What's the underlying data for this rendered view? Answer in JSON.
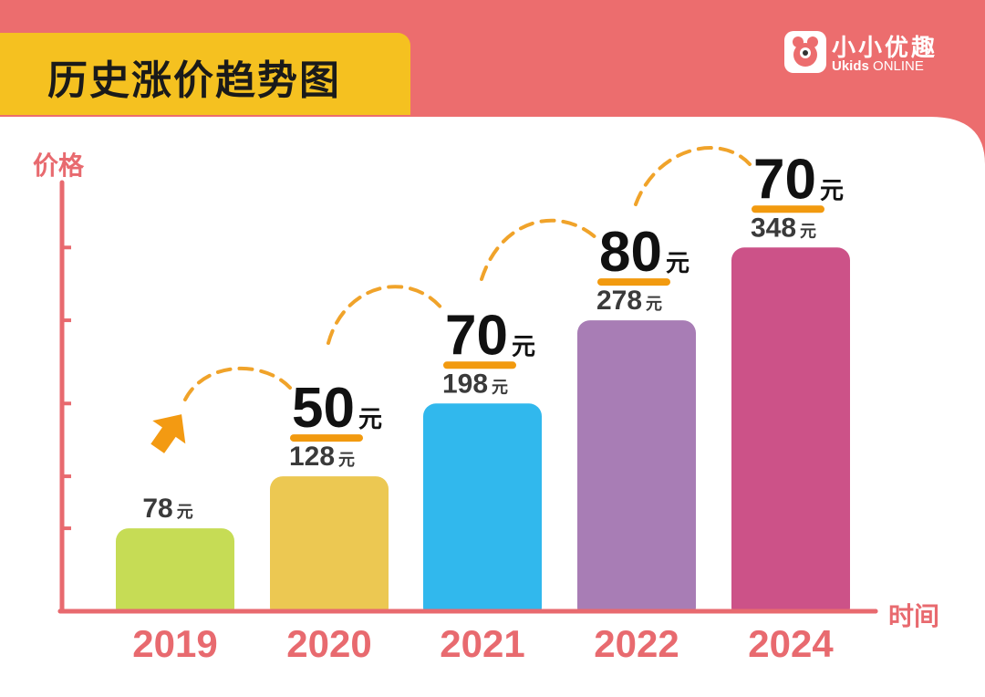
{
  "header": {
    "title": "历史涨价趋势图",
    "brand_name": "小小优趣",
    "brand_sub_bold": "Ukids",
    "brand_sub_rest": " ONLINE"
  },
  "colors": {
    "header_bg": "#ec6d6e",
    "title_bg": "#f5c120",
    "axis": "#e86a6f",
    "dash": "#f0a32a",
    "underline": "#f29a0f"
  },
  "chart_data": {
    "type": "bar",
    "ylabel": "价格",
    "xlabel": "时间",
    "categories": [
      "2019",
      "2020",
      "2021",
      "2022",
      "2024"
    ],
    "values": [
      78,
      128,
      198,
      278,
      348
    ],
    "value_labels": [
      "78",
      "128",
      "198",
      "278",
      "348"
    ],
    "unit": "元",
    "bar_colors": [
      "#c6dc55",
      "#ecc852",
      "#31b8ed",
      "#a87db5",
      "#cc5288"
    ],
    "increases": [
      {
        "value": "50",
        "unit": "元"
      },
      {
        "value": "70",
        "unit": "元"
      },
      {
        "value": "80",
        "unit": "元"
      },
      {
        "value": "70",
        "unit": "元"
      }
    ],
    "ylim": [
      0,
      400
    ],
    "grid": false
  }
}
